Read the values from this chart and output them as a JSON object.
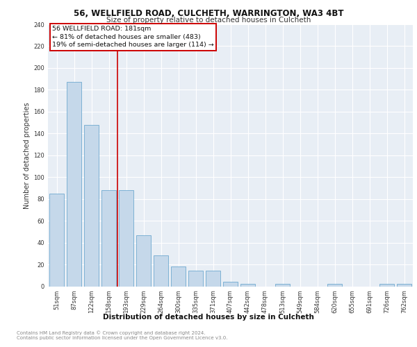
{
  "title1": "56, WELLFIELD ROAD, CULCHETH, WARRINGTON, WA3 4BT",
  "title2": "Size of property relative to detached houses in Culcheth",
  "xlabel": "Distribution of detached houses by size in Culcheth",
  "ylabel": "Number of detached properties",
  "categories": [
    "51sqm",
    "87sqm",
    "122sqm",
    "158sqm",
    "193sqm",
    "229sqm",
    "264sqm",
    "300sqm",
    "335sqm",
    "371sqm",
    "407sqm",
    "442sqm",
    "478sqm",
    "513sqm",
    "549sqm",
    "584sqm",
    "620sqm",
    "655sqm",
    "691sqm",
    "726sqm",
    "762sqm"
  ],
  "values": [
    85,
    187,
    148,
    88,
    88,
    47,
    28,
    18,
    14,
    14,
    4,
    2,
    0,
    2,
    0,
    0,
    2,
    0,
    0,
    2,
    2
  ],
  "bar_color": "#c5d8ea",
  "bar_edge_color": "#5a9ec9",
  "vline_color": "#cc0000",
  "vline_x": 3.5,
  "annotation_text": "56 WELLFIELD ROAD: 181sqm\n← 81% of detached houses are smaller (483)\n19% of semi-detached houses are larger (114) →",
  "ylim": [
    0,
    240
  ],
  "yticks": [
    0,
    20,
    40,
    60,
    80,
    100,
    120,
    140,
    160,
    180,
    200,
    220,
    240
  ],
  "footer_text": "Contains HM Land Registry data © Crown copyright and database right 2024.\nContains public sector information licensed under the Open Government Licence v3.0.",
  "bg_color": "#ffffff",
  "plot_bg_color": "#e8eef5",
  "grid_color": "#ffffff",
  "title1_fontsize": 8.5,
  "title2_fontsize": 7.5,
  "xlabel_fontsize": 7.5,
  "ylabel_fontsize": 7.0,
  "tick_fontsize": 6.0,
  "annot_fontsize": 6.8,
  "footer_fontsize": 5.0
}
